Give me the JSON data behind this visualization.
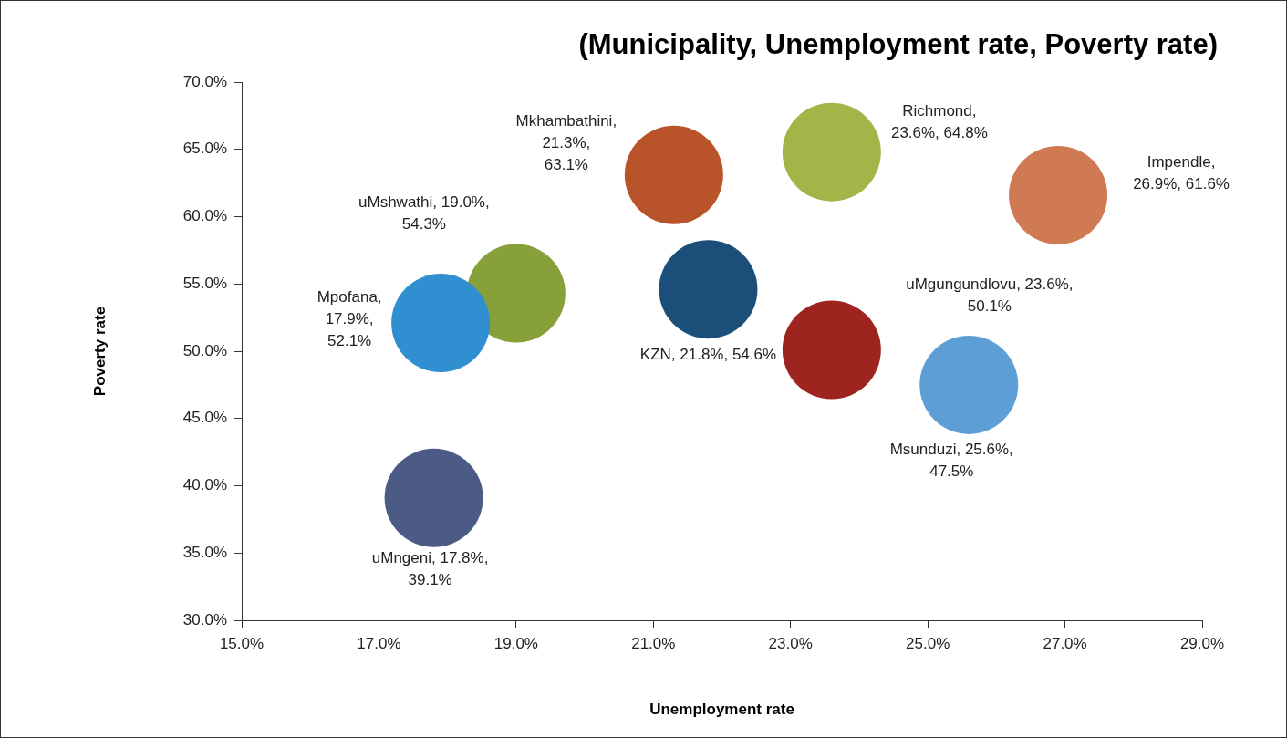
{
  "chart_data": {
    "type": "bubble",
    "title": "(Municipality, Unemployment rate, Poverty rate)",
    "xlabel": "Unemployment rate",
    "ylabel": "Poverty rate",
    "x": [
      21.3,
      23.6,
      26.9,
      19.0,
      17.9,
      21.8,
      23.6,
      25.6,
      17.8
    ],
    "values": [
      63.1,
      64.8,
      61.6,
      54.3,
      52.1,
      54.6,
      50.1,
      47.5,
      39.1
    ],
    "sizes": [
      1,
      1,
      1,
      1,
      1,
      1,
      1,
      1,
      1
    ],
    "colors": [
      "#b9532a",
      "#a3b548",
      "#cf7a52",
      "#88a03a",
      "#2f8fd0",
      "#1b4f7a",
      "#9e2420",
      "#5d9ed6",
      "#4b5b86"
    ],
    "xlim": [
      15,
      29
    ],
    "xticks": [
      {
        "value": 15,
        "label": "15.0%"
      },
      {
        "value": 17,
        "label": "17.0%"
      },
      {
        "value": 19,
        "label": "19.0%"
      },
      {
        "value": 21,
        "label": "21.0%"
      },
      {
        "value": 23,
        "label": "23.0%"
      },
      {
        "value": 25,
        "label": "25.0%"
      },
      {
        "value": 27,
        "label": "27.0%"
      },
      {
        "value": 29,
        "label": "29.0%"
      }
    ],
    "ylim": [
      30,
      70
    ],
    "yticks": [
      {
        "value": 30,
        "label": "30.0%"
      },
      {
        "value": 35,
        "label": "35.0%"
      },
      {
        "value": 40,
        "label": "40.0%"
      },
      {
        "value": 45,
        "label": "45.0%"
      },
      {
        "value": 50,
        "label": "50.0%"
      },
      {
        "value": 55,
        "label": "55.0%"
      },
      {
        "value": 60,
        "label": "60.0%"
      },
      {
        "value": 65,
        "label": "65.0%"
      },
      {
        "value": 70,
        "label": "70.0%"
      }
    ],
    "grid": false,
    "legend": false,
    "value_labels": [
      "Mkhambathini,\n21.3%,\n63.1%",
      "Richmond,\n23.6%, 64.8%",
      "Impendle,\n26.9%, 61.6%",
      "uMshwathi, 19.0%,\n54.3%",
      "Mpofana,\n17.9%,\n52.1%",
      "KZN, 21.8%, 54.6%",
      "uMgungundlovu, 23.6%,\n50.1%",
      "Msunduzi, 25.6%,\n47.5%",
      "uMngeni, 17.8%,\n39.1%"
    ]
  }
}
